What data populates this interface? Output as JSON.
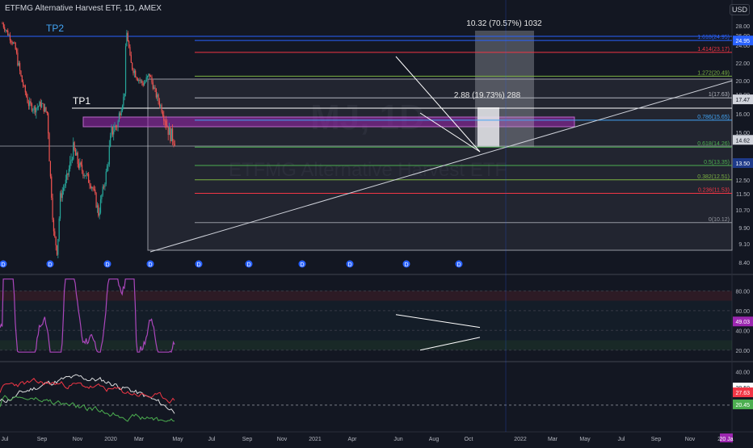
{
  "header": {
    "symbol_line": "ETFMG Alternative Harvest ETF, 1D, AMEX",
    "currency": "USD"
  },
  "watermark": {
    "ticker": "MJ, 1D",
    "name": "ETFMG Alternative Harvest ETF"
  },
  "annotations": {
    "tp1": "TP1",
    "tp2": "TP2",
    "measure_big": "10.32 (70.57%) 1032",
    "measure_small": "2.88 (19.73%) 288"
  },
  "fib_levels": [
    {
      "label": "1.618(24.95)",
      "value": 24.95,
      "color": "#2962ff"
    },
    {
      "label": "1.414(23.17)",
      "value": 23.17,
      "color": "#f23645"
    },
    {
      "label": "1.272(20.49)",
      "value": 20.49,
      "color": "#7cb342"
    },
    {
      "label": "1(17.63)",
      "value": 17.63,
      "color": "#b2b5be"
    },
    {
      "label": "0.786(15.65)",
      "value": 15.65,
      "color": "#42a5f5"
    },
    {
      "label": "0.618(14.26)",
      "value": 14.26,
      "color": "#4caf50"
    },
    {
      "label": "0.5(13.35)",
      "value": 13.35,
      "color": "#4caf50"
    },
    {
      "label": "0.382(12.51)",
      "value": 12.51,
      "color": "#7cb342"
    },
    {
      "label": "0.236(11.53)",
      "value": 11.53,
      "color": "#f23645"
    },
    {
      "label": "0(10.12)",
      "value": 10.12,
      "color": "#9598a1"
    }
  ],
  "price_badges": [
    {
      "label": "24.95",
      "value": 24.95,
      "color": "#2962ff"
    },
    {
      "label": "17.47",
      "value": 17.47,
      "color": "#d1d4dc"
    },
    {
      "label": "14.62",
      "value": 14.62,
      "color": "#d1d4dc"
    },
    {
      "label": "13.50",
      "value": 13.5,
      "color": "#1e3a8a"
    }
  ],
  "rsi_badge": {
    "label": "49.03",
    "value": 49.03,
    "color": "#9c27b0"
  },
  "osc_badges": [
    {
      "label": "30.50",
      "value": 30.5,
      "color": "#ffffff"
    },
    {
      "label": "27.63",
      "value": 27.63,
      "color": "#f23645"
    },
    {
      "label": "20.45",
      "value": 20.45,
      "color": "#4caf50"
    }
  ],
  "chart_data": {
    "type": "candlestick",
    "title": "ETFMG Alternative Harvest ETF, 1D, AMEX",
    "price_axis": {
      "scale": "log",
      "ylim": [
        8.2,
        29.5
      ],
      "ticks": [
        {
          "label": "28.00",
          "value": 28.0
        },
        {
          "label": "26.00",
          "value": 26.0
        },
        {
          "label": "24.00",
          "value": 24.0
        },
        {
          "label": "22.00",
          "value": 22.0
        },
        {
          "label": "20.00",
          "value": 20.0
        },
        {
          "label": "18.00",
          "value": 18.0
        },
        {
          "label": "16.00",
          "value": 16.0
        },
        {
          "label": "15.00",
          "value": 15.0
        },
        {
          "label": "13.50",
          "value": 13.5
        },
        {
          "label": "12.50",
          "value": 12.5
        },
        {
          "label": "11.50",
          "value": 11.5
        },
        {
          "label": "10.70",
          "value": 10.7
        },
        {
          "label": "9.90",
          "value": 9.9
        },
        {
          "label": "9.10",
          "value": 9.1
        },
        {
          "label": "8.40",
          "value": 8.4
        }
      ]
    },
    "time_axis": {
      "labels": [
        "Jul",
        "Sep",
        "Nov",
        "2020",
        "Mar",
        "May",
        "Jul",
        "Sep",
        "Nov",
        "2021",
        "Apr",
        "Jun",
        "Aug",
        "Oct",
        "2022",
        "Mar",
        "May",
        "Jul",
        "Sep",
        "Nov",
        "2e"
      ],
      "cursor_label": "20 Ja"
    },
    "price_path": [
      [
        "2019-07-01",
        28.5
      ],
      [
        "2019-08-01",
        26.0
      ],
      [
        "2019-09-01",
        23.5
      ],
      [
        "2019-10-01",
        20.0
      ],
      [
        "2019-11-01",
        17.0
      ],
      [
        "2019-12-01",
        16.5
      ],
      [
        "2020-01-01",
        17.0
      ],
      [
        "2020-02-01",
        16.0
      ],
      [
        "2020-03-01",
        9.6
      ],
      [
        "2020-03-18",
        8.8
      ],
      [
        "2020-04-01",
        11.3
      ],
      [
        "2020-05-01",
        12.5
      ],
      [
        "2020-06-01",
        14.2
      ],
      [
        "2020-07-01",
        13.3
      ],
      [
        "2020-08-01",
        12.8
      ],
      [
        "2020-09-01",
        12.0
      ],
      [
        "2020-10-01",
        10.5
      ],
      [
        "2020-11-01",
        12.5
      ],
      [
        "2020-12-01",
        15.0
      ],
      [
        "2021-01-01",
        15.5
      ],
      [
        "2021-02-01",
        18.0
      ],
      [
        "2021-02-10",
        27.0
      ],
      [
        "2021-03-01",
        22.0
      ],
      [
        "2021-04-01",
        20.5
      ],
      [
        "2021-05-01",
        19.5
      ],
      [
        "2021-06-01",
        20.7
      ],
      [
        "2021-07-01",
        18.0
      ],
      [
        "2021-08-01",
        16.3
      ],
      [
        "2021-09-01",
        15.0
      ],
      [
        "2021-10-01",
        14.6
      ]
    ],
    "rsi": {
      "ylim": [
        10,
        95
      ],
      "ticks": [
        {
          "label": "80.00",
          "value": 80
        },
        {
          "label": "60.00",
          "value": 60
        },
        {
          "label": "40.00",
          "value": 40
        },
        {
          "label": "20.00",
          "value": 20
        }
      ],
      "upper_band": 70,
      "lower_band": 30,
      "last": 49.03
    },
    "oscillator": {
      "ticks": [
        {
          "label": "40.00",
          "value": 40
        },
        {
          "label": "30.50",
          "value": 30.5
        },
        {
          "label": "27.63",
          "value": 27.63
        },
        {
          "label": "20.45",
          "value": 20.45
        }
      ],
      "series": [
        {
          "name": "",
          "color": "#ffffff",
          "last": 30.5
        },
        {
          "name": "",
          "color": "#f23645",
          "last": 27.63
        },
        {
          "name": "",
          "color": "#4caf50",
          "last": 20.45
        }
      ]
    }
  }
}
